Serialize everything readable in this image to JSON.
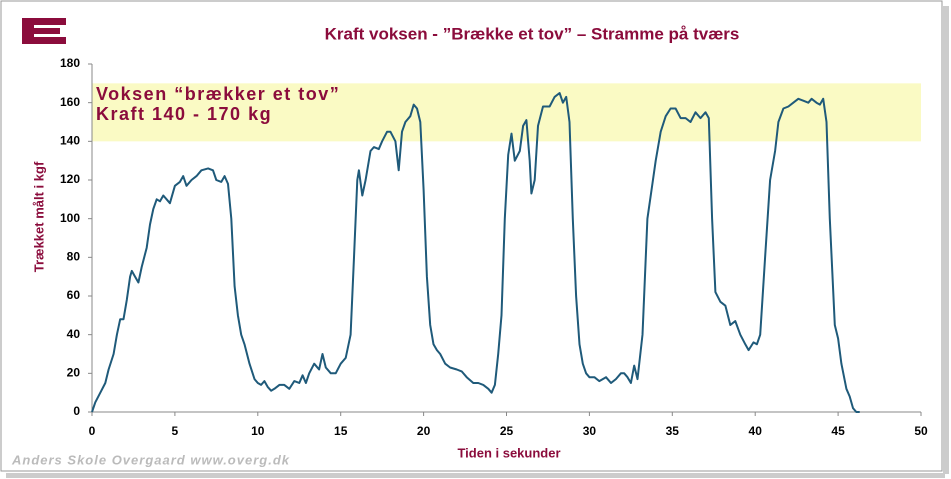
{
  "chart_data": {
    "type": "line",
    "title": "Kraft voksen - ”Brække et tov” – Stramme på tværs",
    "x_label": "Tiden i sekunder",
    "y_label": "Trækket målt i kgf",
    "footer": "Anders Skole Overgaard www.overg.dk",
    "band": {
      "range": [
        140,
        170
      ],
      "color": "#fafac4",
      "labels": [
        "Voksen “brækker et tov”",
        "Kraft 140 - 170 kg"
      ]
    },
    "xlim": [
      0,
      50
    ],
    "xticks": [
      0,
      5,
      10,
      15,
      20,
      25,
      30,
      35,
      40,
      45,
      50
    ],
    "ylim": [
      0,
      180
    ],
    "yticks": [
      0,
      20,
      40,
      60,
      80,
      100,
      120,
      140,
      160,
      180
    ],
    "grid": false,
    "x": [
      0,
      0.2,
      0.5,
      0.8,
      1,
      1.3,
      1.5,
      1.7,
      1.9,
      2.1,
      2.3,
      2.4,
      2.6,
      2.8,
      3,
      3.3,
      3.5,
      3.7,
      3.9,
      4.1,
      4.3,
      4.5,
      4.7,
      5,
      5.3,
      5.5,
      5.7,
      6,
      6.3,
      6.6,
      7,
      7.3,
      7.5,
      7.8,
      8,
      8.2,
      8.4,
      8.6,
      8.8,
      9,
      9.2,
      9.5,
      9.8,
      10,
      10.2,
      10.4,
      10.6,
      10.8,
      11,
      11.3,
      11.6,
      11.9,
      12.2,
      12.5,
      12.7,
      12.9,
      13.1,
      13.4,
      13.7,
      13.9,
      14.1,
      14.4,
      14.7,
      15,
      15.3,
      15.6,
      15.8,
      16,
      16.1,
      16.3,
      16.5,
      16.8,
      17,
      17.3,
      17.5,
      17.8,
      18,
      18.3,
      18.5,
      18.7,
      18.9,
      19.2,
      19.4,
      19.6,
      19.8,
      20,
      20.2,
      20.4,
      20.6,
      20.8,
      21,
      21.3,
      21.6,
      22,
      22.3,
      22.6,
      23,
      23.3,
      23.6,
      23.9,
      24.1,
      24.3,
      24.5,
      24.7,
      24.9,
      25.1,
      25.3,
      25.5,
      25.8,
      26,
      26.2,
      26.4,
      26.5,
      26.7,
      26.9,
      27.2,
      27.6,
      27.9,
      28.2,
      28.4,
      28.6,
      28.8,
      29,
      29.2,
      29.4,
      29.6,
      29.8,
      30,
      30.3,
      30.6,
      31,
      31.3,
      31.6,
      31.9,
      32.1,
      32.3,
      32.5,
      32.7,
      32.9,
      33.2,
      33.5,
      33.8,
      34,
      34.3,
      34.6,
      34.9,
      35.2,
      35.5,
      35.8,
      36.1,
      36.4,
      36.7,
      37,
      37.2,
      37.4,
      37.6,
      37.9,
      38.2,
      38.5,
      38.8,
      39.1,
      39.4,
      39.6,
      39.9,
      40.1,
      40.3,
      40.6,
      40.9,
      41.2,
      41.4,
      41.7,
      42,
      42.3,
      42.6,
      42.9,
      43.2,
      43.4,
      43.7,
      43.9,
      44.1,
      44.3,
      44.5,
      44.8,
      45,
      45.2,
      45.5,
      45.7,
      45.9,
      46.1,
      46.3
    ],
    "values": [
      0,
      5,
      10,
      15,
      22,
      30,
      40,
      48,
      48,
      58,
      70,
      73,
      70,
      67,
      75,
      85,
      97,
      105,
      110,
      109,
      112,
      110,
      108,
      117,
      119,
      122,
      117,
      120,
      122,
      125,
      126,
      125,
      120,
      119,
      122,
      118,
      100,
      65,
      50,
      40,
      35,
      25,
      17,
      15,
      14,
      16,
      13,
      11,
      12,
      14,
      14,
      12,
      16,
      15,
      19,
      15,
      20,
      25,
      22,
      30,
      23,
      20,
      20,
      25,
      28,
      40,
      80,
      120,
      125,
      112,
      120,
      135,
      137,
      136,
      140,
      145,
      145,
      140,
      125,
      145,
      150,
      153,
      159,
      157,
      150,
      115,
      70,
      45,
      35,
      32,
      30,
      25,
      23,
      22,
      21,
      18,
      15,
      15,
      14,
      12,
      10,
      14,
      30,
      50,
      100,
      133,
      144,
      130,
      135,
      148,
      151,
      130,
      113,
      120,
      148,
      158,
      158,
      163,
      165,
      160,
      163,
      150,
      100,
      60,
      35,
      25,
      20,
      18,
      18,
      16,
      18,
      15,
      17,
      20,
      20,
      18,
      15,
      24,
      17,
      40,
      100,
      118,
      130,
      145,
      153,
      157,
      157,
      152,
      152,
      150,
      155,
      152,
      155,
      152,
      100,
      62,
      57,
      55,
      45,
      47,
      40,
      35,
      32,
      36,
      35,
      40,
      80,
      120,
      135,
      150,
      157,
      158,
      160,
      162,
      161,
      160,
      162,
      160,
      159,
      162,
      150,
      100,
      45,
      38,
      25,
      12,
      8,
      2,
      0,
      0
    ],
    "color": "#1f5a7a",
    "title_color": "#8b0c3c"
  }
}
